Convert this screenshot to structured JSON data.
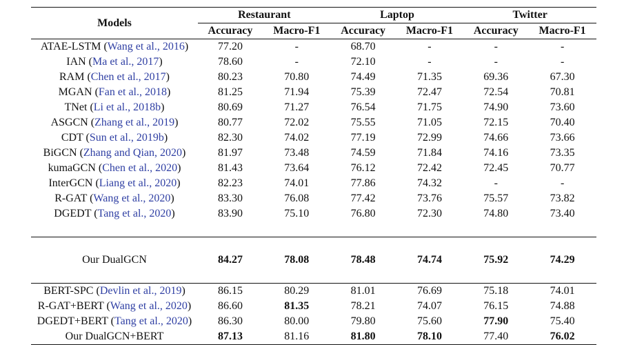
{
  "header": {
    "models": "Models",
    "groups": [
      "Restaurant",
      "Laptop",
      "Twitter"
    ],
    "metrics": [
      "Accuracy",
      "Macro-F1",
      "Accuracy",
      "Macro-F1",
      "Accuracy",
      "Macro-F1"
    ]
  },
  "baselines": [
    {
      "model": "ATAE-LSTM",
      "cite": "Wang et al., 2016",
      "values": [
        "77.20",
        "-",
        "68.70",
        "-",
        "-",
        "-"
      ],
      "bold": []
    },
    {
      "model": "IAN",
      "cite": "Ma et al., 2017",
      "values": [
        "78.60",
        "-",
        "72.10",
        "-",
        "-",
        "-"
      ],
      "bold": []
    },
    {
      "model": "RAM",
      "cite": "Chen et al., 2017",
      "values": [
        "80.23",
        "70.80",
        "74.49",
        "71.35",
        "69.36",
        "67.30"
      ],
      "bold": []
    },
    {
      "model": "MGAN",
      "cite": "Fan et al., 2018",
      "values": [
        "81.25",
        "71.94",
        "75.39",
        "72.47",
        "72.54",
        "70.81"
      ],
      "bold": []
    },
    {
      "model": "TNet",
      "cite": "Li et al., 2018b",
      "values": [
        "80.69",
        "71.27",
        "76.54",
        "71.75",
        "74.90",
        "73.60"
      ],
      "bold": []
    },
    {
      "model": "ASGCN",
      "cite": "Zhang et al., 2019",
      "values": [
        "80.77",
        "72.02",
        "75.55",
        "71.05",
        "72.15",
        "70.40"
      ],
      "bold": []
    },
    {
      "model": "CDT",
      "cite": "Sun et al., 2019b",
      "values": [
        "82.30",
        "74.02",
        "77.19",
        "72.99",
        "74.66",
        "73.66"
      ],
      "bold": []
    },
    {
      "model": "BiGCN",
      "cite": "Zhang and Qian, 2020",
      "values": [
        "81.97",
        "73.48",
        "74.59",
        "71.84",
        "74.16",
        "73.35"
      ],
      "bold": []
    },
    {
      "model": "kumaGCN",
      "cite": "Chen et al., 2020",
      "values": [
        "81.43",
        "73.64",
        "76.12",
        "72.42",
        "72.45",
        "70.77"
      ],
      "bold": []
    },
    {
      "model": "InterGCN",
      "cite": "Liang et al., 2020",
      "values": [
        "82.23",
        "74.01",
        "77.86",
        "74.32",
        "-",
        "-"
      ],
      "bold": []
    },
    {
      "model": "R-GAT",
      "cite": "Wang et al., 2020",
      "values": [
        "83.30",
        "76.08",
        "77.42",
        "73.76",
        "75.57",
        "73.82"
      ],
      "bold": []
    },
    {
      "model": "DGEDT",
      "cite": "Tang et al., 2020",
      "values": [
        "83.90",
        "75.10",
        "76.80",
        "72.30",
        "74.80",
        "73.40"
      ],
      "bold": []
    }
  ],
  "ours": {
    "model": "Our DualGCN",
    "cite": "",
    "values": [
      "84.27",
      "78.08",
      "78.48",
      "74.74",
      "75.92",
      "74.29"
    ],
    "bold": [
      0,
      1,
      2,
      3,
      4,
      5
    ]
  },
  "bert": [
    {
      "model": "BERT-SPC",
      "cite": "Devlin et al., 2019",
      "values": [
        "86.15",
        "80.29",
        "81.01",
        "76.69",
        "75.18",
        "74.01"
      ],
      "bold": []
    },
    {
      "model": "R-GAT+BERT",
      "cite": "Wang et al., 2020",
      "values": [
        "86.60",
        "81.35",
        "78.21",
        "74.07",
        "76.15",
        "74.88"
      ],
      "bold": [
        1
      ]
    },
    {
      "model": "DGEDT+BERT",
      "cite": "Tang et al., 2020",
      "values": [
        "86.30",
        "80.00",
        "79.80",
        "75.60",
        "77.90",
        "75.40"
      ],
      "bold": [
        4
      ]
    },
    {
      "model": "Our DualGCN+BERT",
      "cite": "",
      "values": [
        "87.13",
        "81.16",
        "81.80",
        "78.10",
        "77.40",
        "76.02"
      ],
      "bold": [
        0,
        2,
        3,
        5
      ]
    }
  ]
}
